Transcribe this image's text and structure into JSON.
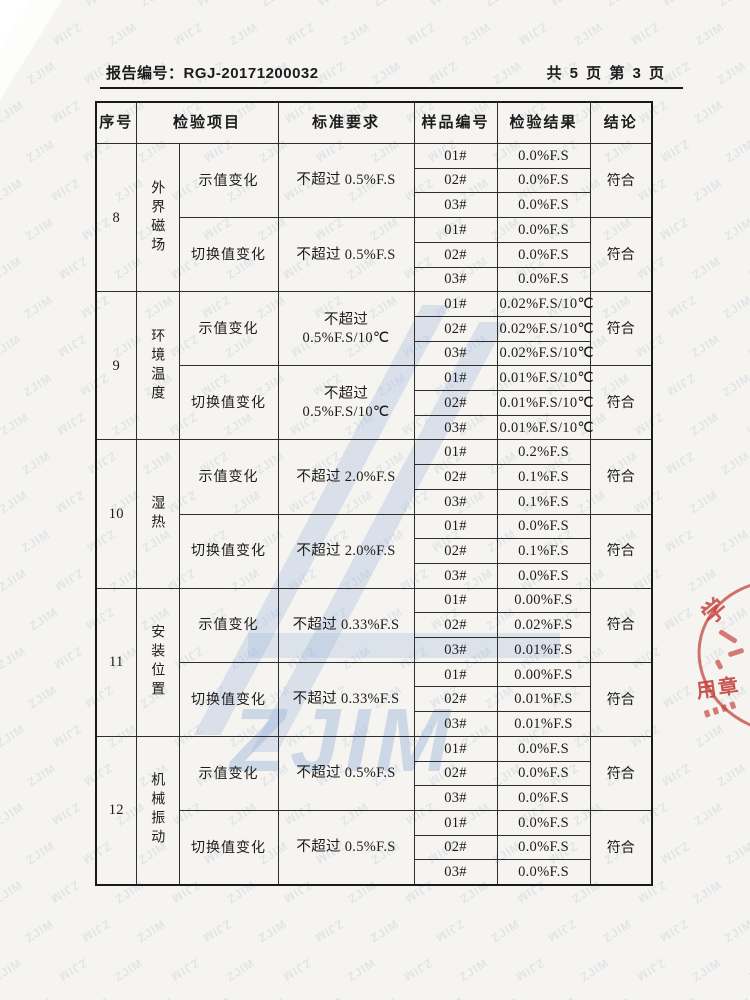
{
  "colors": {
    "stamp_red": "#c4463f",
    "watermark_blue": "#9db8de",
    "pattern_blue": "#7894c6"
  },
  "header": {
    "report_label": "报告编号：",
    "report_no": "RGJ-20171200032",
    "page_info": "共 5 页  第 3 页"
  },
  "watermark": {
    "pattern_text": "ZJIM",
    "logo_text": "ZJIM"
  },
  "stamp": {
    "top_char": "学",
    "bottom_text": "用章"
  },
  "table": {
    "headers": [
      "序号",
      "检验项目",
      "标准要求",
      "样品编号",
      "检验结果",
      "结论"
    ],
    "rows": [
      {
        "no": "8",
        "category": "外界磁场",
        "subrows": [
          {
            "item": "示值变化",
            "standard": "不超过 0.5%F.S",
            "conclusion": "符合",
            "samples": [
              [
                "01#",
                "0.0%F.S"
              ],
              [
                "02#",
                "0.0%F.S"
              ],
              [
                "03#",
                "0.0%F.S"
              ]
            ]
          },
          {
            "item": "切换值变化",
            "standard": "不超过 0.5%F.S",
            "conclusion": "符合",
            "samples": [
              [
                "01#",
                "0.0%F.S"
              ],
              [
                "02#",
                "0.0%F.S"
              ],
              [
                "03#",
                "0.0%F.S"
              ]
            ]
          }
        ]
      },
      {
        "no": "9",
        "category": "环境温度",
        "subrows": [
          {
            "item": "示值变化",
            "standard": "不超过 0.5%F.S/10℃",
            "conclusion": "符合",
            "samples": [
              [
                "01#",
                "0.02%F.S/10℃"
              ],
              [
                "02#",
                "0.02%F.S/10℃"
              ],
              [
                "03#",
                "0.02%F.S/10℃"
              ]
            ]
          },
          {
            "item": "切换值变化",
            "standard": "不超过 0.5%F.S/10℃",
            "conclusion": "符合",
            "samples": [
              [
                "01#",
                "0.01%F.S/10℃"
              ],
              [
                "02#",
                "0.01%F.S/10℃"
              ],
              [
                "03#",
                "0.01%F.S/10℃"
              ]
            ]
          }
        ]
      },
      {
        "no": "10",
        "category": "湿热",
        "subrows": [
          {
            "item": "示值变化",
            "standard": "不超过 2.0%F.S",
            "conclusion": "符合",
            "samples": [
              [
                "01#",
                "0.2%F.S"
              ],
              [
                "02#",
                "0.1%F.S"
              ],
              [
                "03#",
                "0.1%F.S"
              ]
            ]
          },
          {
            "item": "切换值变化",
            "standard": "不超过 2.0%F.S",
            "conclusion": "符合",
            "samples": [
              [
                "01#",
                "0.0%F.S"
              ],
              [
                "02#",
                "0.1%F.S"
              ],
              [
                "03#",
                "0.0%F.S"
              ]
            ]
          }
        ]
      },
      {
        "no": "11",
        "category": "安装位置",
        "subrows": [
          {
            "item": "示值变化",
            "standard": "不超过 0.33%F.S",
            "conclusion": "符合",
            "samples": [
              [
                "01#",
                "0.00%F.S"
              ],
              [
                "02#",
                "0.02%F.S"
              ],
              [
                "03#",
                "0.01%F.S"
              ]
            ]
          },
          {
            "item": "切换值变化",
            "standard": "不超过 0.33%F.S",
            "conclusion": "符合",
            "samples": [
              [
                "01#",
                "0.00%F.S"
              ],
              [
                "02#",
                "0.01%F.S"
              ],
              [
                "03#",
                "0.01%F.S"
              ]
            ]
          }
        ]
      },
      {
        "no": "12",
        "category": "机械振动",
        "subrows": [
          {
            "item": "示值变化",
            "standard": "不超过 0.5%F.S",
            "conclusion": "符合",
            "samples": [
              [
                "01#",
                "0.0%F.S"
              ],
              [
                "02#",
                "0.0%F.S"
              ],
              [
                "03#",
                "0.0%F.S"
              ]
            ]
          },
          {
            "item": "切换值变化",
            "standard": "不超过 0.5%F.S",
            "conclusion": "符合",
            "samples": [
              [
                "01#",
                "0.0%F.S"
              ],
              [
                "02#",
                "0.0%F.S"
              ],
              [
                "03#",
                "0.0%F.S"
              ]
            ]
          }
        ]
      }
    ]
  }
}
